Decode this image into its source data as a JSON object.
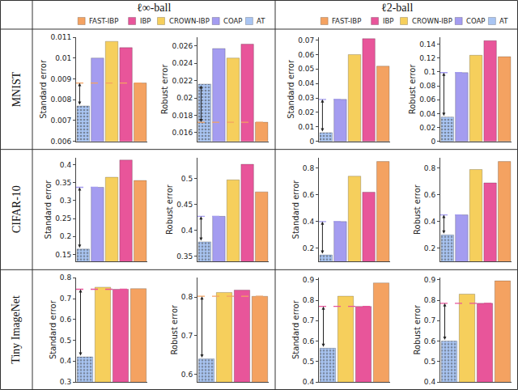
{
  "columns": [
    "ℓ∞-ball",
    "ℓ2-ball"
  ],
  "rows": [
    "MNIST",
    "CIFAR-10",
    "Tiny ImageNet"
  ],
  "series": [
    {
      "name": "FAST-IBP",
      "color": "#f4a261"
    },
    {
      "name": "IBP",
      "color": "#e8559a"
    },
    {
      "name": "CROWN-IBP",
      "color": "#f6cf5c"
    },
    {
      "name": "COAP",
      "color": "#a49cf0"
    },
    {
      "name": "AT",
      "color": "#a9c5f3",
      "marker": "dots"
    }
  ],
  "chart_data": [
    {
      "type": "bar",
      "y_label": "Standard error",
      "categories": [
        "AT",
        "COAP",
        "CROWN-IBP",
        "IBP",
        "FAST-IBP"
      ],
      "values": [
        0.0077,
        0.01,
        0.0108,
        0.0105,
        0.0088
      ],
      "ylim": [
        0.006,
        0.011
      ],
      "yticks": [
        0.006,
        0.007,
        0.008,
        0.009,
        0.01,
        0.011
      ],
      "grid": false,
      "tick_labels": "y"
    },
    {
      "type": "bar",
      "y_label": "Robust error",
      "categories": [
        "AT",
        "COAP",
        "CROWN-IBP",
        "IBP",
        "FAST-IBP"
      ],
      "values": [
        0.0216,
        0.0257,
        0.0246,
        0.0262,
        0.0172
      ],
      "ylim": [
        0.015,
        0.027
      ],
      "yticks": [
        0.016,
        0.018,
        0.02,
        0.022,
        0.024,
        0.026
      ],
      "grid": false,
      "tick_labels": "y"
    },
    {
      "type": "bar",
      "y_label": "Standard error",
      "categories": [
        "AT",
        "COAP",
        "CROWN-IBP",
        "IBP",
        "FAST-IBP"
      ],
      "values": [
        0.006,
        0.029,
        0.06,
        0.071,
        0.052
      ],
      "ylim": [
        0,
        0.072
      ],
      "yticks": [
        0,
        0.01,
        0.02,
        0.03,
        0.04,
        0.05,
        0.06,
        0.07
      ],
      "grid": false,
      "tick_labels": "y"
    },
    {
      "type": "bar",
      "y_label": "Robust error",
      "categories": [
        "AT",
        "COAP",
        "CROWN-IBP",
        "IBP",
        "FAST-IBP"
      ],
      "values": [
        0.035,
        0.099,
        0.124,
        0.145,
        0.122
      ],
      "ylim": [
        0,
        0.15
      ],
      "yticks": [
        0,
        0.02,
        0.04,
        0.06,
        0.08,
        0.1,
        0.12,
        0.14
      ],
      "grid": false,
      "tick_labels": "y"
    },
    {
      "type": "bar",
      "y_label": "Standard error",
      "categories": [
        "AT",
        "COAP",
        "CROWN-IBP",
        "IBP",
        "FAST-IBP"
      ],
      "values": [
        0.165,
        0.337,
        0.365,
        0.413,
        0.356
      ],
      "ylim": [
        0.13,
        0.42
      ],
      "yticks": [
        0.15,
        0.2,
        0.25,
        0.3,
        0.35,
        0.4
      ],
      "grid": false,
      "tick_labels": "y"
    },
    {
      "type": "bar",
      "y_label": "Robust error",
      "categories": [
        "AT",
        "COAP",
        "CROWN-IBP",
        "IBP",
        "FAST-IBP"
      ],
      "values": [
        0.378,
        0.427,
        0.497,
        0.527,
        0.474
      ],
      "ylim": [
        0.34,
        0.54
      ],
      "yticks": [
        0.35,
        0.4,
        0.45,
        0.5
      ],
      "grid": false,
      "tick_labels": "y"
    },
    {
      "type": "bar",
      "y_label": "Standard error",
      "categories": [
        "AT",
        "COAP",
        "CROWN-IBP",
        "IBP",
        "FAST-IBP"
      ],
      "values": [
        0.15,
        0.4,
        0.74,
        0.62,
        0.85
      ],
      "ylim": [
        0.1,
        0.88
      ],
      "yticks": [
        0.2,
        0.4,
        0.6,
        0.8
      ],
      "grid": false,
      "tick_labels": "y"
    },
    {
      "type": "bar",
      "y_label": "Robust error",
      "categories": [
        "AT",
        "COAP",
        "CROWN-IBP",
        "IBP",
        "FAST-IBP"
      ],
      "values": [
        0.3,
        0.45,
        0.79,
        0.69,
        0.85
      ],
      "ylim": [
        0.1,
        0.88
      ],
      "yticks": [
        0.2,
        0.4,
        0.6,
        0.8
      ],
      "grid": false,
      "tick_labels": "y"
    },
    {
      "type": "bar",
      "y_label": "Standard error",
      "categories": [
        "AT",
        "CROWN-IBP",
        "IBP",
        "FAST-IBP"
      ],
      "values": [
        0.42,
        0.755,
        0.745,
        0.748
      ],
      "ylim": [
        0.3,
        0.8
      ],
      "yticks": [
        0.3,
        0.4,
        0.5,
        0.6,
        0.7,
        0.8
      ],
      "grid": false,
      "tick_labels": "y"
    },
    {
      "type": "bar",
      "y_label": "Robust error",
      "categories": [
        "AT",
        "CROWN-IBP",
        "IBP",
        "FAST-IBP"
      ],
      "values": [
        0.64,
        0.812,
        0.818,
        0.802
      ],
      "ylim": [
        0.58,
        0.85
      ],
      "yticks": [
        0.6,
        0.7,
        0.8
      ],
      "grid": false,
      "tick_labels": "y"
    },
    {
      "type": "bar",
      "y_label": "Standard error",
      "categories": [
        "AT",
        "CROWN-IBP",
        "IBP",
        "FAST-IBP"
      ],
      "values": [
        0.565,
        0.82,
        0.77,
        0.885
      ],
      "ylim": [
        0.4,
        0.91
      ],
      "yticks": [
        0.4,
        0.5,
        0.6,
        0.7,
        0.8,
        0.9
      ],
      "grid": false,
      "tick_labels": "y"
    },
    {
      "type": "bar",
      "y_label": "Robust error",
      "categories": [
        "AT",
        "CROWN-IBP",
        "IBP",
        "FAST-IBP"
      ],
      "values": [
        0.6,
        0.83,
        0.785,
        0.895
      ],
      "ylim": [
        0.4,
        0.91
      ],
      "yticks": [
        0.4,
        0.5,
        0.6,
        0.7,
        0.8,
        0.9
      ],
      "grid": false,
      "tick_labels": "y"
    }
  ]
}
